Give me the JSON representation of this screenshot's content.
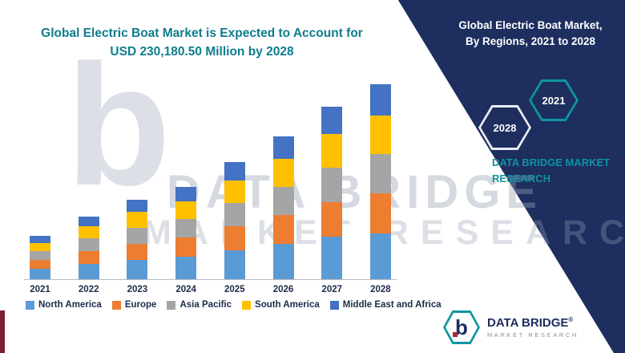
{
  "header": {
    "title_line1": "Global Electric Boat Market is Expected to Account for",
    "title_line2": "USD 230,180.50 Million by 2028"
  },
  "side_panel": {
    "heading_line1": "Global Electric Boat Market,",
    "heading_line2": "By Regions, 2021 to 2028",
    "hexagon_start_year": "2021",
    "hexagon_end_year": "2028",
    "brand_line1": "DATA BRIDGE MARKET",
    "brand_line2": "RESEARCH"
  },
  "watermark": {
    "letter": "b",
    "line1": "DATA BRIDGE",
    "line2": "MARKET RESEARCH"
  },
  "logo": {
    "letter": "b",
    "name": "DATA BRIDGE",
    "registered": "®",
    "subtitle": "MARKET RESEARCH"
  },
  "colors": {
    "navy": "#1d2e5f",
    "teal": "#0e7d8c",
    "brand_teal": "#12929e",
    "red_accent": "#7c1e2c"
  },
  "chart_data": {
    "type": "bar",
    "stacked": true,
    "title": "Global Electric Boat Market is Expected to Account for USD 230,180.50 Million by 2028",
    "unit": "USD Million",
    "categories": [
      "2021",
      "2022",
      "2023",
      "2024",
      "2025",
      "2026",
      "2027",
      "2028"
    ],
    "series": [
      {
        "name": "North America",
        "color": "#5B9BD5",
        "values": [
          12600,
          18200,
          23000,
          26800,
          34000,
          41200,
          49800,
          54000
        ]
      },
      {
        "name": "Europe",
        "color": "#ED7D31",
        "values": [
          10200,
          15000,
          19000,
          22000,
          28000,
          34200,
          41400,
          47000
        ]
      },
      {
        "name": "Asia Pacific",
        "color": "#A5A5A5",
        "values": [
          10000,
          14800,
          18800,
          21800,
          27600,
          33600,
          40600,
          46500
        ]
      },
      {
        "name": "South America",
        "color": "#FFC000",
        "values": [
          9800,
          14200,
          18200,
          21000,
          26600,
          32400,
          39200,
          45000
        ]
      },
      {
        "name": "Middle East and Africa",
        "color": "#4472C4",
        "values": [
          8400,
          11800,
          15000,
          17400,
          21800,
          26600,
          32000,
          37680.5
        ]
      }
    ],
    "totals": [
      51000,
      74000,
      94000,
      109000,
      138000,
      168000,
      203000,
      230180.5
    ],
    "ylim": [
      0,
      240000
    ],
    "grid": false,
    "legend_position": "bottom"
  }
}
